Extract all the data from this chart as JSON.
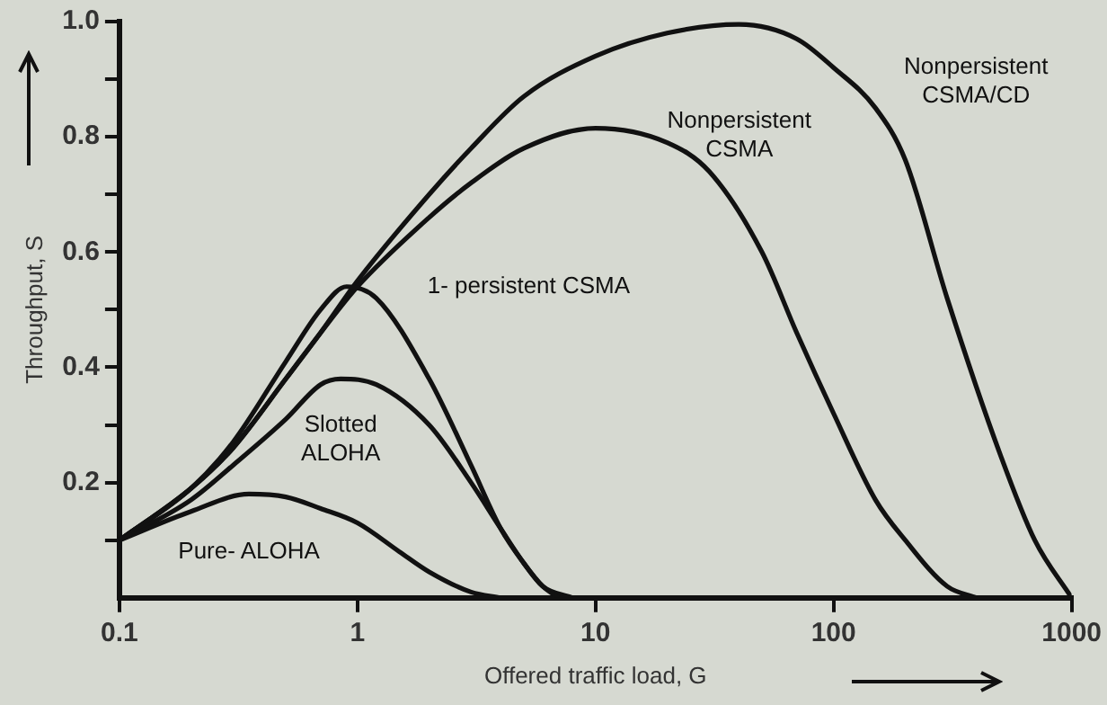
{
  "chart_data": {
    "type": "line",
    "xlabel": "Offered traffic load, G",
    "ylabel": "Throughput, S",
    "log": "x",
    "grid": false,
    "legend": false,
    "marker": "none",
    "line_style": "solid",
    "xlim": [
      0.1,
      1000
    ],
    "xticks": [
      0.1,
      1,
      10,
      100,
      1000
    ],
    "ylim": [
      0,
      1
    ],
    "yticks": [
      {
        "value": 0.1,
        "label": null
      },
      0.2,
      {
        "value": 0.3,
        "label": null
      },
      0.4,
      {
        "value": 0.5,
        "label": null
      },
      0.6,
      {
        "value": 0.7,
        "label": null
      },
      0.8,
      {
        "value": 0.9,
        "label": null
      },
      {
        "value": 1,
        "label": "1.0"
      }
    ],
    "series": [
      {
        "name": "Pure- ALOHA",
        "color": "#111111",
        "x": [
          0.1,
          0.2,
          0.35,
          0.5,
          0.7,
          1,
          1.5,
          2,
          3,
          4
        ],
        "values": [
          0.1,
          0.15,
          0.18,
          0.175,
          0.155,
          0.13,
          0.08,
          0.045,
          0.01,
          0
        ]
      },
      {
        "name": "Slotted ALOHA",
        "color": "#111111",
        "x": [
          0.1,
          0.2,
          0.3,
          0.5,
          0.7,
          0.85,
          1.2,
          2,
          3,
          4,
          5,
          6,
          7
        ],
        "values": [
          0.1,
          0.17,
          0.23,
          0.31,
          0.37,
          0.38,
          0.37,
          0.3,
          0.2,
          0.12,
          0.06,
          0.02,
          0
        ]
      },
      {
        "name": "1- persistent CSMA",
        "color": "#111111",
        "x": [
          0.1,
          0.2,
          0.3,
          0.5,
          0.7,
          0.9,
          1.2,
          2,
          3,
          4,
          5,
          6,
          8
        ],
        "values": [
          0.1,
          0.19,
          0.27,
          0.41,
          0.5,
          0.54,
          0.52,
          0.38,
          0.23,
          0.12,
          0.06,
          0.02,
          0
        ]
      },
      {
        "name": "Nonpersistent CSMA",
        "color": "#111111",
        "x": [
          0.1,
          0.2,
          0.3,
          0.5,
          0.7,
          1,
          2,
          3,
          5,
          10,
          20,
          30,
          50,
          70,
          100,
          150,
          200,
          300,
          400
        ],
        "values": [
          0.1,
          0.19,
          0.26,
          0.38,
          0.46,
          0.54,
          0.66,
          0.72,
          0.78,
          0.815,
          0.79,
          0.74,
          0.6,
          0.46,
          0.32,
          0.17,
          0.1,
          0.02,
          0
        ]
      },
      {
        "name": "Nonpersistent CSMA/CD",
        "color": "#111111",
        "x": [
          0.1,
          0.2,
          0.3,
          0.5,
          0.7,
          1,
          2,
          3,
          5,
          10,
          20,
          40,
          70,
          100,
          150,
          200,
          300,
          500,
          700,
          1000
        ],
        "values": [
          0.1,
          0.19,
          0.26,
          0.38,
          0.46,
          0.55,
          0.7,
          0.78,
          0.87,
          0.94,
          0.98,
          0.995,
          0.97,
          0.92,
          0.85,
          0.76,
          0.52,
          0.25,
          0.1,
          0
        ]
      }
    ]
  }
}
